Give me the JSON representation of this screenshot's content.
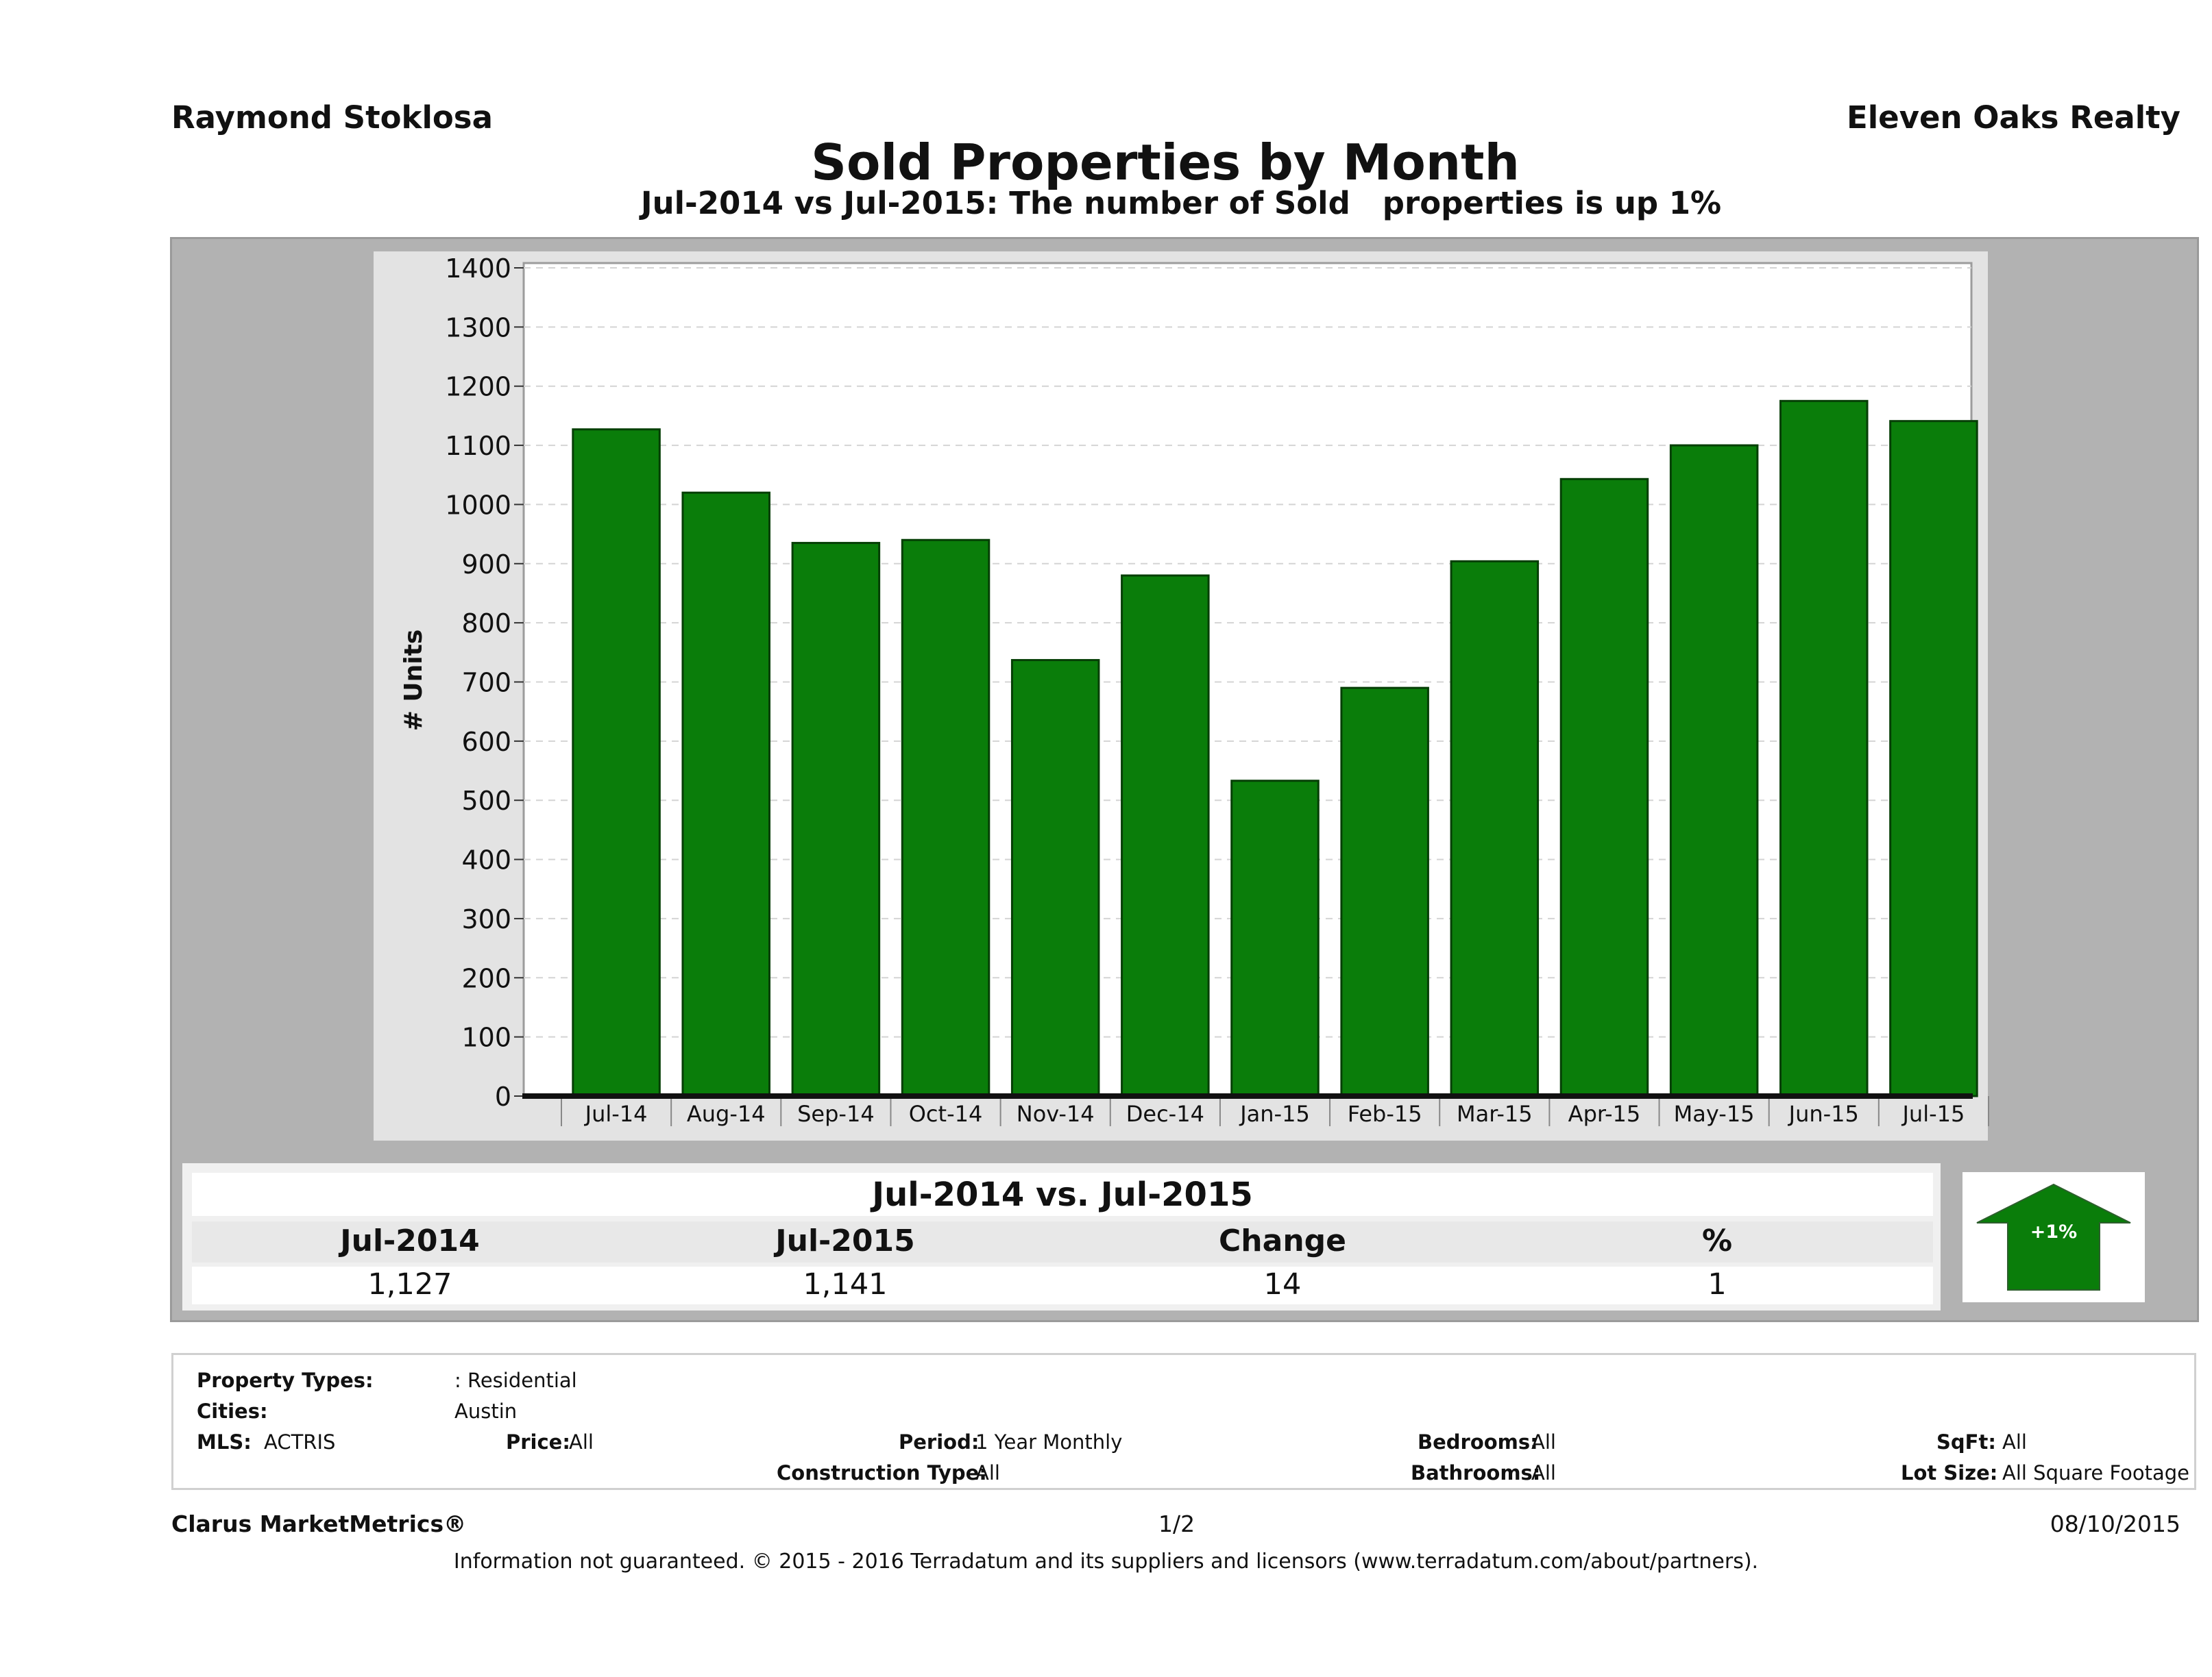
{
  "header": {
    "agent": "Raymond Stoklosa",
    "company": "Eleven Oaks Realty",
    "title": "Sold Properties by Month",
    "subtitle": "Jul-2014 vs Jul-2015: The number of Sold   properties is up 1%"
  },
  "colors": {
    "bar": "#0a7d0a",
    "bar_edge": "#063f06",
    "grid": "#d4d4d4"
  },
  "chart_data": {
    "type": "bar",
    "categories": [
      "Jul-14",
      "Aug-14",
      "Sep-14",
      "Oct-14",
      "Nov-14",
      "Dec-14",
      "Jan-15",
      "Feb-15",
      "Mar-15",
      "Apr-15",
      "May-15",
      "Jun-15",
      "Jul-15"
    ],
    "values": [
      1127,
      1020,
      935,
      940,
      737,
      880,
      533,
      690,
      904,
      1043,
      1100,
      1175,
      1141
    ],
    "ylabel": "# Units",
    "ylim": [
      0,
      1400
    ],
    "yticks": [
      0,
      100,
      200,
      300,
      400,
      500,
      600,
      700,
      800,
      900,
      1000,
      1100,
      1200,
      1300,
      1400
    ],
    "grid": true
  },
  "comparison": {
    "title": "Jul-2014 vs. Jul-2015",
    "headers": [
      "Jul-2014",
      "Jul-2015",
      "Change",
      "%"
    ],
    "values": [
      "1,127",
      "1,141",
      "14",
      "1"
    ],
    "badge": "+1%",
    "badge_icon": "up-arrow-icon"
  },
  "meta": {
    "property_types_label": "Property Types:",
    "property_types_value": ": Residential",
    "cities_label": "Cities:",
    "cities_value": "Austin",
    "mls_label": "MLS:",
    "mls_value": "ACTRIS",
    "price_label": "Price:",
    "price_value": "All",
    "period_label": "Period:",
    "period_value": "1 Year Monthly",
    "construction_label": "Construction Type:",
    "construction_value": "All",
    "bedrooms_label": "Bedrooms:",
    "bedrooms_value": "All",
    "bathrooms_label": "Bathrooms:",
    "bathrooms_value": "All",
    "sqft_label": "SqFt:",
    "sqft_value": "All",
    "lotsize_label": "Lot Size:",
    "lotsize_value": "All Square Footage"
  },
  "footer": {
    "brand": "Clarus MarketMetrics®",
    "page": "1/2",
    "date": "08/10/2015",
    "disclaimer": "Information not guaranteed. © 2015 - 2016 Terradatum and its suppliers and licensors (www.terradatum.com/about/partners)."
  }
}
